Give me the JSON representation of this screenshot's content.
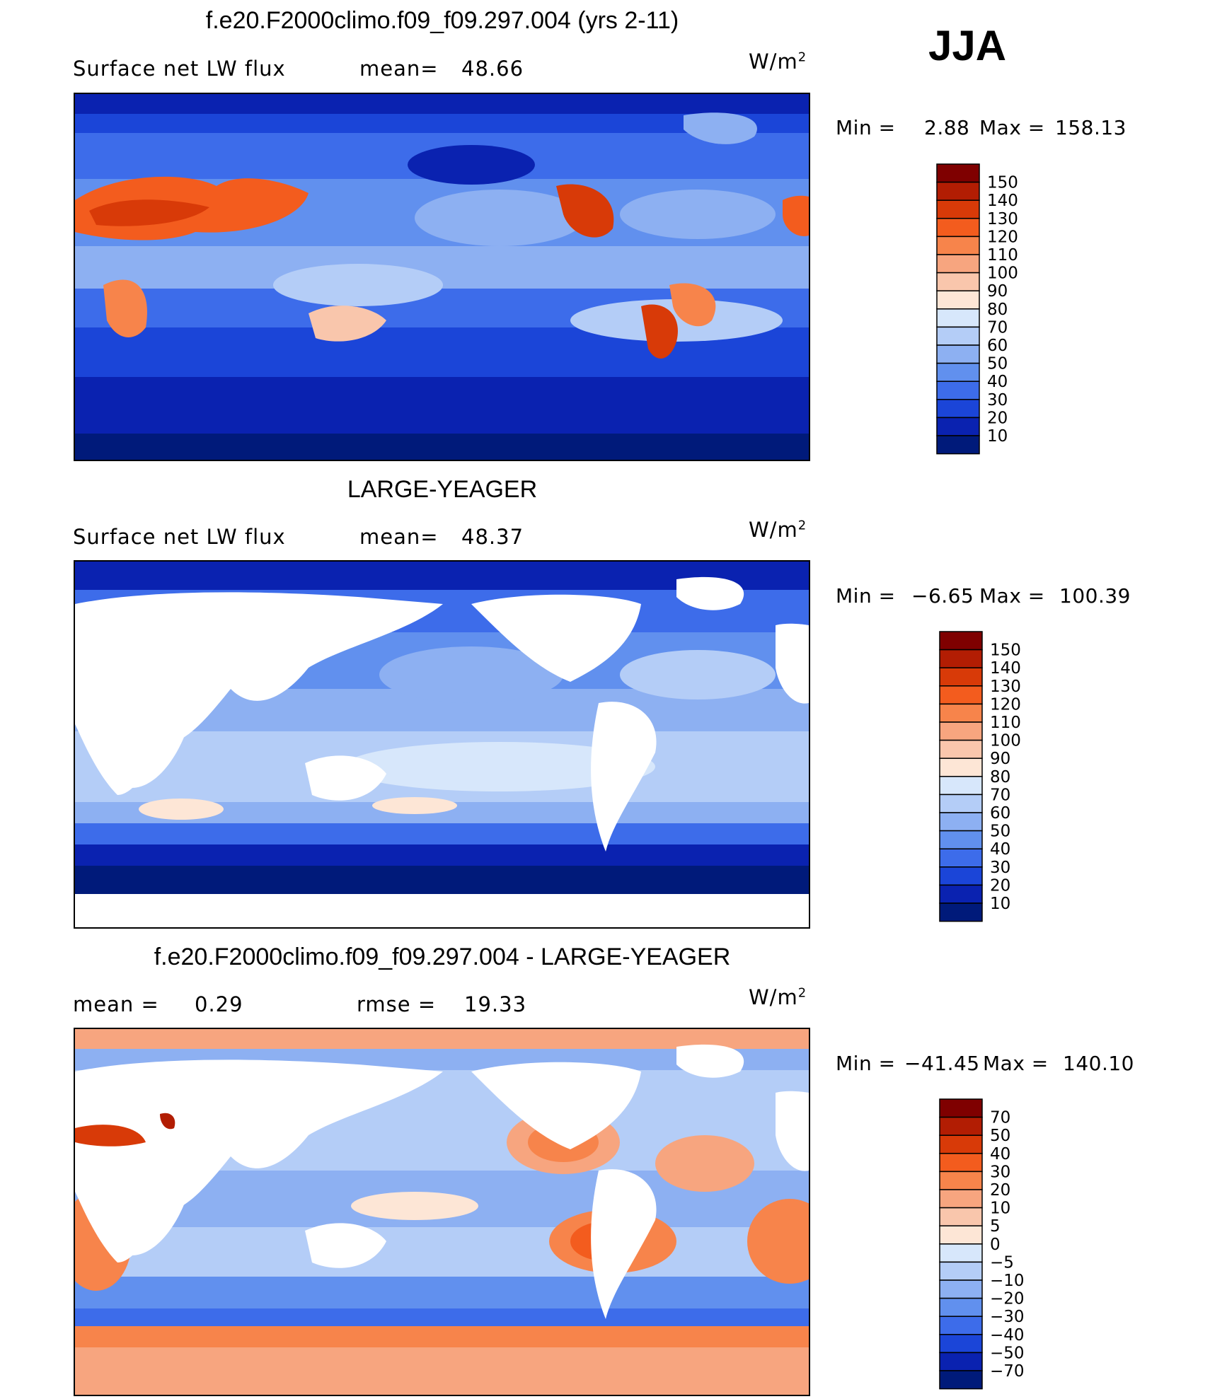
{
  "season": "JJA",
  "units_base": "W/m",
  "units_exp": "2",
  "panels": [
    {
      "title": "f.e20.F2000climo.f09_f09.297.004 (yrs 2-11)",
      "left_label": "Surface net LW flux",
      "stat_label": "mean=",
      "stat_value": "48.66",
      "min_label": "Min =",
      "min_value": "2.88",
      "max_label": "Max =",
      "max_value": "158.13",
      "land_masked": false
    },
    {
      "title": "LARGE-YEAGER",
      "left_label": "Surface net LW flux",
      "stat_label": "mean=",
      "stat_value": "48.37",
      "min_label": "Min =",
      "min_value": "−6.65",
      "max_label": "Max =",
      "max_value": "100.39",
      "land_masked": true
    },
    {
      "title": "f.e20.F2000climo.f09_f09.297.004 - LARGE-YEAGER",
      "left_label": "mean =",
      "left_value": "0.29",
      "stat_label": "rmse =",
      "stat_value": "19.33",
      "min_label": "Min =",
      "min_value": "−41.45",
      "max_label": "Max =",
      "max_value": "140.10",
      "land_masked": true
    }
  ],
  "colorbars": {
    "field": {
      "labels": [
        "150",
        "140",
        "130",
        "120",
        "110",
        "100",
        "90",
        "80",
        "70",
        "60",
        "50",
        "40",
        "30",
        "20",
        "10"
      ],
      "colors": [
        "#7f0000",
        "#b21d03",
        "#d83a08",
        "#f35c1e",
        "#f7844b",
        "#f7a57f",
        "#f9c6ac",
        "#fde6d6",
        "#d7e7fb",
        "#b4cdf7",
        "#8db0f2",
        "#6190ee",
        "#3d6cea",
        "#1b45d8",
        "#0a22b0",
        "#001a7a"
      ]
    },
    "diff": {
      "labels": [
        "70",
        "50",
        "40",
        "30",
        "20",
        "10",
        "5",
        "0",
        "−5",
        "−10",
        "−20",
        "−30",
        "−40",
        "−50",
        "−70"
      ],
      "colors": [
        "#7f0000",
        "#b21d03",
        "#d83a08",
        "#f35c1e",
        "#f7844b",
        "#f7a57f",
        "#f9c6ac",
        "#fde6d6",
        "#d7e7fb",
        "#b4cdf7",
        "#8db0f2",
        "#6190ee",
        "#3d6cea",
        "#1b45d8",
        "#0a22b0",
        "#001a7a"
      ]
    }
  },
  "colors": {
    "land": "#ffffff",
    "coast": "#000000",
    "deep_blue": "#0a22b0",
    "mid_blue": "#6190ee",
    "light_blue": "#b4cdf7",
    "warm": "#f7844b",
    "hot": "#d83a08"
  }
}
